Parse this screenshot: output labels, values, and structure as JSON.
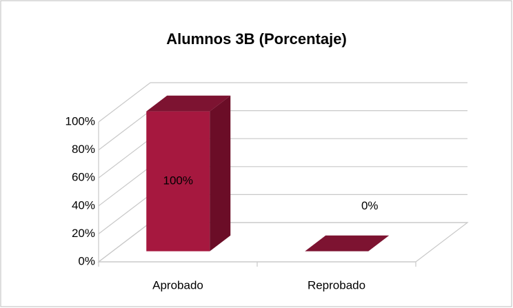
{
  "chart_data": {
    "type": "bar3d",
    "title": "Alumnos 3B (Porcentaje)",
    "categories": [
      "Aprobado",
      "Reprobado"
    ],
    "values": [
      100,
      0
    ],
    "value_labels": [
      "100%",
      "0%"
    ],
    "color": "#a6183f",
    "ylim": [
      0,
      100
    ],
    "yticks": [
      {
        "value": 0,
        "label": "0%"
      },
      {
        "value": 20,
        "label": "20%"
      },
      {
        "value": 40,
        "label": "40%"
      },
      {
        "value": 60,
        "label": "60%"
      },
      {
        "value": 80,
        "label": "80%"
      },
      {
        "value": 100,
        "label": "100%"
      }
    ],
    "grid": true
  }
}
